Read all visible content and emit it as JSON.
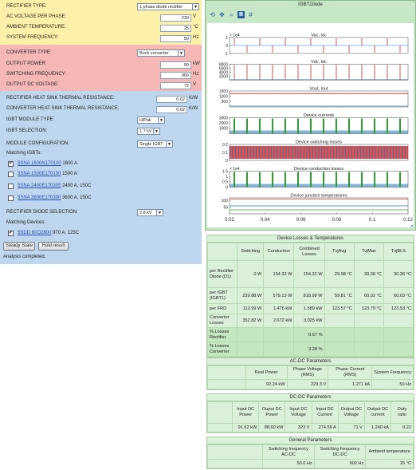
{
  "rectifier": {
    "type_label": "RECTIFIER TYPE:",
    "type_value": "1 phase diode rectifier",
    "ac_voltage_label": "AC VOLTAGE PER PHASE:",
    "ac_voltage_value": "230",
    "ac_voltage_unit": "V",
    "ambient_label": "AMBIENT TEMPERATURE:",
    "ambient_value": "25",
    "ambient_unit": "°C",
    "freq_label": "SYSTEM FREQUENCY:",
    "freq_value": "50",
    "freq_unit": "Hz"
  },
  "converter": {
    "type_label": "CONVERTER TYPE:",
    "type_value": "Buck converter",
    "power_label": "OUTPUT POWER:",
    "power_value": "90",
    "power_unit": "kW",
    "sw_label": "SWITCHING FREQUENCY:",
    "sw_value": "900",
    "sw_unit": "Hz",
    "vdc_label": "OUTPUT DC VOLTAGE:",
    "vdc_value": "72",
    "vdc_unit": "V"
  },
  "thermal": {
    "rect_rth_label": "RECTIFIER HEAT SINK THERMAL RESISTANCE:",
    "rect_rth_value": "0.02",
    "rect_rth_unit": "K/W",
    "conv_rth_label": "CONVERTER HEAT SINK THERMAL RESISTANCE:",
    "conv_rth_value": "0.02",
    "conv_rth_unit": "K/W",
    "module_type_label": "IGBT MODULE TYPE:",
    "module_type_value": "HiPak",
    "igbt_sel_label": "IGBT SELECTION:",
    "igbt_sel_value": "1.7 kV",
    "module_cfg_label": "MODULE CONFIGURATION:",
    "module_cfg_value": "Single IGBT",
    "matching_igbts_label": "Matching IGBTs:",
    "igbts": [
      {
        "name": "5SNA 1600N170100",
        "desc": "1600 A",
        "checked": true
      },
      {
        "name": "5SNA 1500E170100",
        "desc": "1500 A",
        "checked": false
      },
      {
        "name": "5SNA 2400E170305",
        "desc": "2400 A, 150C",
        "checked": false
      },
      {
        "name": "5SNA 3600E170300",
        "desc": "3600 A, 150C",
        "checked": false
      }
    ],
    "diode_sel_label": "RECTIFIER DIODE SELECTION:",
    "diode_sel_value": "2.8 kV",
    "matching_devices_label": "Matching Devices:",
    "devices": [
      {
        "name": "5SDD 60Q2800",
        "desc": "970 A, 125C",
        "checked": true
      }
    ],
    "steady_state_button": "Steady State",
    "hold_result_button": "Hold result",
    "status": "Analysis completed."
  },
  "plot_window": {
    "title": "IGBT,Diode",
    "toolbar_icons": [
      "rotate-icon",
      "pan-icon",
      "zoom-icon",
      "datacursor-icon",
      "grid-icon"
    ],
    "checkbox": "✕"
  },
  "chart_data": {
    "type": "line",
    "x_range": [
      0.02,
      0.12
    ],
    "x_ticks": [
      "0.02",
      "0.04",
      "0.06",
      "0.08",
      "0.1",
      "0.12"
    ],
    "subplots": [
      {
        "title": "Vac, Iac",
        "multiplier": "× 1e4",
        "ylim": [
          -1,
          1
        ],
        "y_ticks": [
          "1",
          "0",
          "-1"
        ],
        "series_colors": [
          "#1f77b4",
          "#d62728"
        ],
        "pattern": "spikes-up-down"
      },
      {
        "title": "Vdc, Idc",
        "ylim": [
          0,
          8000
        ],
        "y_ticks": [
          "8000",
          "6000",
          "4000",
          "2000"
        ],
        "series_colors": [
          "#1f77b4",
          "#d62728"
        ],
        "pattern": "spikes-up"
      },
      {
        "title": "Vout, Iout",
        "ylim": [
          0,
          1500
        ],
        "y_ticks": [
          "1500",
          "1000",
          "500"
        ],
        "series_colors": [
          "#1f77b4",
          "#d62728"
        ],
        "pattern": "flat",
        "level": 1250
      },
      {
        "title": "Device currents",
        "ylim": [
          0,
          3000
        ],
        "y_ticks": [
          "3000",
          "2000",
          "1000"
        ],
        "series_colors": [
          "#2ca02c",
          "#1f77b4",
          "#d62728"
        ],
        "pattern": "pulses-dense"
      },
      {
        "title": "Device switching losses",
        "ylim": [
          0,
          0.2
        ],
        "y_ticks": [
          "0.2",
          "0.1",
          "0"
        ],
        "series_colors": [
          "#1f77b4",
          "#d62728"
        ],
        "pattern": "dense-band"
      },
      {
        "title": "Device conduction losses",
        "multiplier": "× 1e4",
        "ylim": [
          0,
          1.5
        ],
        "y_ticks": [
          "1.5",
          "1",
          "0.5",
          "0"
        ],
        "series_colors": [
          "#2ca02c",
          "#1f77b4",
          "#d62728"
        ],
        "pattern": "pulses-dense"
      },
      {
        "title": "Device junction temperatures",
        "ylim": [
          0,
          120
        ],
        "y_ticks": [
          "100",
          "50"
        ],
        "series_colors": [
          "#d62728",
          "#1f77b4"
        ],
        "pattern": "temps"
      }
    ]
  },
  "losses": {
    "title": "Device Losses & Temperatures",
    "headers": [
      "",
      "Switching",
      "Conduction",
      "Combined Losses",
      "TvjAvg",
      "TvjMax",
      "TvjBLS"
    ],
    "rows": [
      [
        "per Rectifier Diode (D1)",
        "0 W",
        "154.32 W",
        "154.32 W",
        "29.98 °C",
        "30.38 °C",
        "30.36 °C"
      ],
      [
        "per IGBT (IGBT1)",
        "239.88 W",
        "579.13 W",
        "818.98 W",
        "59.81 °C",
        "60.32 °C",
        "60.03 °C"
      ],
      [
        "per FRD",
        "112.99 W",
        "1.476 kW",
        "1.589 kW",
        "123.57 °C",
        "123.79 °C",
        "123.53 °C"
      ],
      [
        "Converter Losses",
        "352.82 W",
        "2.672 kW",
        "3.025 kW",
        "",
        "",
        ""
      ],
      [
        "% Losses Rectifier",
        "",
        "",
        "0.67 %",
        "",
        "",
        ""
      ],
      [
        "% Losses Converter",
        "",
        "",
        "3.28 %",
        "",
        "",
        ""
      ]
    ]
  },
  "acdc": {
    "title": "AC-DC Parameters",
    "headers": [
      "",
      "Real Power",
      "Phase Voltage (RMS)",
      "Phase Current (RMS)",
      "System Frequency"
    ],
    "values": [
      "",
      "92.24 kW",
      "229.3 V",
      "1.271 kA",
      "50 Hz"
    ]
  },
  "dcdc": {
    "title": "DC-DC Parameters",
    "headers": [
      "",
      "Input DC Power",
      "Ouput DC Power",
      "Input DC Voltage",
      "Input DC Current",
      "Output DC Voltage",
      "Output DC current",
      "Duty ratio"
    ],
    "values": [
      "",
      "91.62 kW",
      "88.60 kW",
      "323 V",
      "274.59 A",
      "71 V",
      "1.240 kA",
      "0.22"
    ]
  },
  "general": {
    "title": "General Parameters",
    "headers": [
      "",
      "Switching frequency AC-DC",
      "Switching frequency DC-DC",
      "Ambient temperature"
    ],
    "values": [
      "",
      "50.0 Hz",
      "900 Hz",
      "25 °C"
    ]
  }
}
